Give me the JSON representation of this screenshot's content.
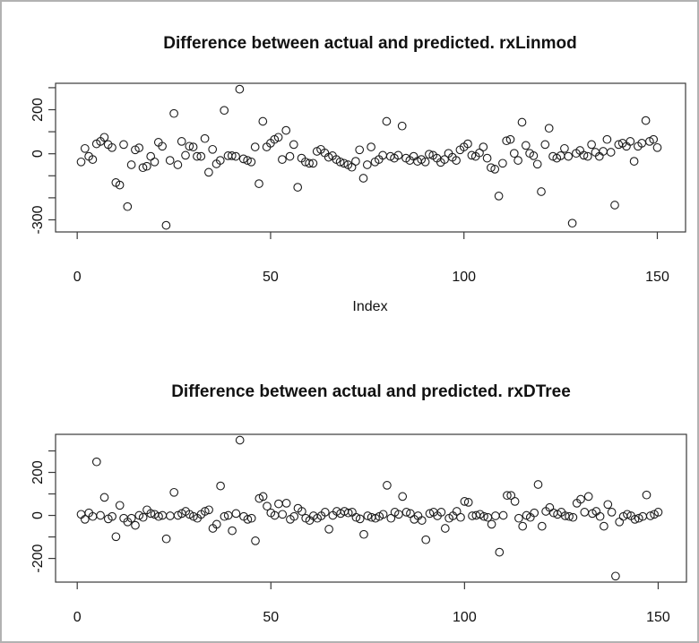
{
  "window": {
    "background": "#ffffff",
    "border_color": "#b2b2b2",
    "plot_line_color": "#3a3a3a",
    "point_color": "#1c1c1c"
  },
  "chart_data": [
    {
      "type": "scatter",
      "title": "Difference between actual and predicted. rxLinmod",
      "xlabel": "Index",
      "ylabel": "",
      "marker": "open-circle",
      "grid": false,
      "legend": "none",
      "x_start": 1,
      "xlim": [
        -5.6,
        157.3
      ],
      "ylim": [
        -355,
        320
      ],
      "x_ticks": [
        {
          "value": 0,
          "label": "0"
        },
        {
          "value": 50,
          "label": "50"
        },
        {
          "value": 100,
          "label": "100"
        },
        {
          "value": 150,
          "label": "150"
        }
      ],
      "y_ticks": [
        {
          "value": 300,
          "label": ""
        },
        {
          "value": 200,
          "label": "200"
        },
        {
          "value": 100,
          "label": ""
        },
        {
          "value": 0,
          "label": "0"
        },
        {
          "value": -100,
          "label": ""
        },
        {
          "value": -200,
          "label": ""
        },
        {
          "value": -300,
          "label": "-300"
        }
      ],
      "values": [
        -37,
        24,
        -12,
        -26,
        45,
        56,
        75,
        42,
        28,
        -131,
        -142,
        42,
        -240,
        -50,
        18,
        27,
        -63,
        -57,
        -12,
        -37,
        52,
        34,
        -325,
        -30,
        183,
        -50,
        56,
        -7,
        34,
        31,
        -12,
        -12,
        69,
        -84,
        20,
        -46,
        -30,
        197,
        -9,
        -9,
        -12,
        293,
        -23,
        -30,
        -37,
        31,
        -136,
        147,
        31,
        48,
        65,
        75,
        -26,
        106,
        -12,
        42,
        -152,
        -20,
        -37,
        -43,
        -43,
        11,
        20,
        4,
        -16,
        -9,
        -26,
        -37,
        -43,
        -50,
        -61,
        -34,
        18,
        -111,
        -50,
        31,
        -37,
        -26,
        -7,
        147,
        -12,
        -20,
        -7,
        126,
        -20,
        -30,
        -12,
        -34,
        -26,
        -37,
        -2,
        -7,
        -20,
        -39,
        -26,
        2,
        -16,
        -30,
        18,
        31,
        45,
        -7,
        -12,
        4,
        31,
        -20,
        -63,
        -70,
        -192,
        -43,
        59,
        65,
        2,
        -30,
        143,
        38,
        2,
        -9,
        -47,
        -172,
        42,
        116,
        -12,
        -20,
        -9,
        24,
        -12,
        -315,
        2,
        15,
        -7,
        -12,
        42,
        7,
        -12,
        11,
        65,
        7,
        -233,
        42,
        48,
        34,
        56,
        -34,
        34,
        48,
        151,
        56,
        65,
        28
      ]
    },
    {
      "type": "scatter",
      "title": "Difference between actual and predicted. rxDTree",
      "xlabel": "",
      "ylabel": "",
      "marker": "open-circle",
      "grid": false,
      "legend": "none",
      "x_start": 1,
      "xlim": [
        -5.6,
        157.3
      ],
      "ylim": [
        -310,
        377
      ],
      "x_ticks": [
        {
          "value": 0,
          "label": "0"
        },
        {
          "value": 50,
          "label": "50"
        },
        {
          "value": 100,
          "label": "100"
        },
        {
          "value": 150,
          "label": "150"
        }
      ],
      "y_ticks": [
        {
          "value": 300,
          "label": ""
        },
        {
          "value": 200,
          "label": "200"
        },
        {
          "value": 100,
          "label": ""
        },
        {
          "value": 0,
          "label": "0"
        },
        {
          "value": -100,
          "label": ""
        },
        {
          "value": -200,
          "label": "-200"
        }
      ],
      "values": [
        5,
        -18,
        12,
        -5,
        249,
        0,
        84,
        -16,
        -5,
        -99,
        47,
        -13,
        -30,
        -13,
        -46,
        0,
        -9,
        26,
        9,
        5,
        -5,
        0,
        -109,
        -2,
        107,
        0,
        9,
        19,
        5,
        -5,
        -13,
        5,
        19,
        26,
        -60,
        -41,
        137,
        -5,
        0,
        -71,
        9,
        350,
        -5,
        -18,
        -13,
        -118,
        79,
        88,
        43,
        12,
        0,
        54,
        5,
        57,
        -18,
        -5,
        33,
        19,
        -13,
        -23,
        -2,
        -13,
        -2,
        15,
        -64,
        0,
        19,
        9,
        19,
        12,
        15,
        -9,
        -16,
        -88,
        -2,
        -9,
        -13,
        -5,
        5,
        140,
        -13,
        15,
        5,
        88,
        15,
        9,
        -18,
        -2,
        -23,
        -113,
        9,
        15,
        -2,
        15,
        -60,
        -13,
        -2,
        19,
        -9,
        65,
        61,
        -2,
        0,
        5,
        -5,
        -9,
        -41,
        -2,
        -171,
        0,
        93,
        93,
        65,
        -13,
        -50,
        0,
        -9,
        12,
        144,
        -50,
        19,
        37,
        12,
        5,
        15,
        -2,
        -5,
        -9,
        57,
        75,
        15,
        88,
        9,
        19,
        -5,
        -50,
        51,
        15,
        -282,
        -30,
        -5,
        5,
        -2,
        -18,
        -13,
        -5,
        95,
        -2,
        5,
        15
      ]
    }
  ]
}
